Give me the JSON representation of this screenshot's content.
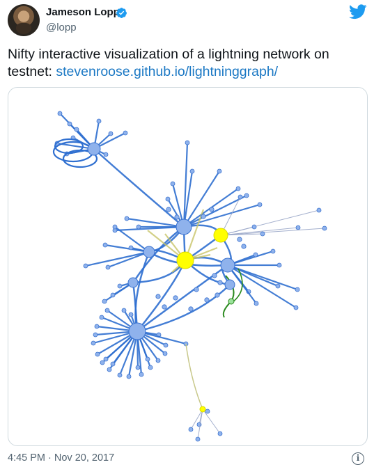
{
  "author": {
    "name": "Jameson Lopp",
    "handle": "@lopp",
    "verified": true,
    "avatar_icon": "avatar"
  },
  "tweet": {
    "text_prefix": "Nifty interactive visualization of a lightning network on testnet: ",
    "link_text": "stevenroose.github.io/lightninggraph/",
    "timestamp": "4:45 PM · Nov 20, 2017"
  },
  "icons": {
    "brand": "twitter-bird-icon",
    "verified": "verified-badge-icon",
    "info": "info-icon"
  },
  "colors": {
    "link": "#1b78c4",
    "bird": "#1d9bf0",
    "node": "#8fb2ec",
    "node_stroke": "#3a72cf",
    "edge": "#2f6fd0",
    "highlight_node": "#ffff00",
    "green_edge": "#2a8a1e"
  }
}
